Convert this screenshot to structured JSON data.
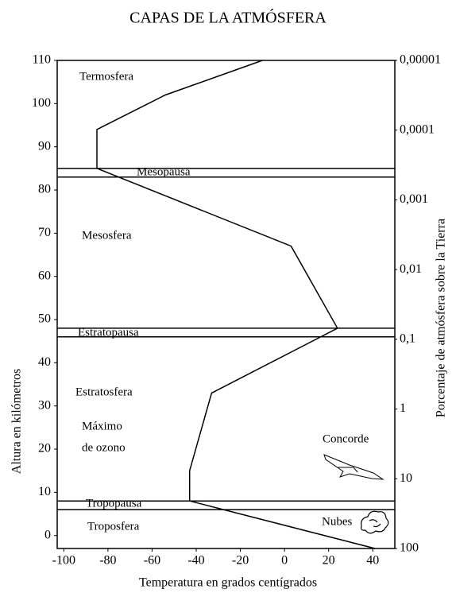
{
  "chart_data": {
    "type": "line",
    "title": "CAPAS DE LA ATMÓSFERA",
    "xlabel": "Temperatura en grados centígrados",
    "ylabel": "Altura en kilómetros",
    "y2label": "Porcentaje de atmósfera sobre la Tierra",
    "series": [
      {
        "color": "#000000",
        "x": [
          -10,
          -54,
          -85,
          -85,
          3,
          24,
          -33,
          -43,
          -43,
          41
        ],
        "values": [
          110,
          102,
          94,
          85,
          67,
          48,
          33,
          15,
          8,
          -3
        ]
      }
    ],
    "xlim": [
      -103,
      50
    ],
    "xticks": [
      -100,
      -80,
      -60,
      -40,
      -20,
      0,
      20,
      40
    ],
    "ylim": [
      -3,
      110
    ],
    "yticks": [
      0,
      10,
      20,
      30,
      40,
      50,
      60,
      70,
      80,
      90,
      100,
      110
    ],
    "y2log": true,
    "y2lim": [
      100,
      1e-05
    ],
    "y2ticks": [
      {
        "value": 1e-05,
        "label": "0,00001"
      },
      {
        "value": 0.0001,
        "label": "0,0001"
      },
      {
        "value": 0.001,
        "label": "0,001"
      },
      {
        "value": 0.01,
        "label": "0,01"
      },
      {
        "value": 0.1,
        "label": "0,1"
      },
      1,
      10,
      100
    ],
    "boundary_lines": [
      85,
      83,
      48,
      46,
      8,
      6
    ],
    "annotations": [
      "Termosfera",
      "Mesopausa",
      "Mesosfera",
      "Estratopausa",
      "Estratosfera",
      "Máximo",
      "de ozono",
      "Concorde",
      "Tropopausa",
      "Troposfera",
      "Nubes"
    ]
  }
}
